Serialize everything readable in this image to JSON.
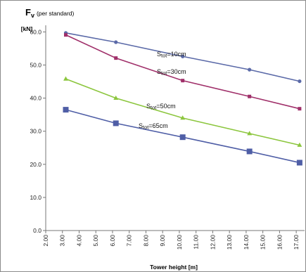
{
  "chart_data": {
    "type": "line",
    "title": "",
    "ylabel_main": "F",
    "ylabel_sub": "v",
    "ylabel_note": "(per standard)",
    "y_unit": "[kN]",
    "xlabel": "Tower height [m]",
    "xlim": [
      2,
      17.5
    ],
    "ylim": [
      0,
      62
    ],
    "x_ticks": [
      "2.00",
      "3.00",
      "4.00",
      "5.00",
      "6.00",
      "7.00",
      "8.00",
      "9.00",
      "10.00",
      "11.00",
      "12.00",
      "13.00",
      "14.00",
      "15.00",
      "16.00",
      "17.00"
    ],
    "y_ticks": [
      "0.0",
      "10.0",
      "20.0",
      "30.0",
      "40.0",
      "50.0",
      "60.0"
    ],
    "grid": false,
    "legend": "inline labels",
    "series": [
      {
        "name": "Stot=10cm",
        "name_main": "S",
        "name_sub": "tot",
        "name_rest": "=10cm",
        "color": "#5b6aa8",
        "marker": "circle",
        "x": [
          3.2,
          6.2,
          10.2,
          14.2,
          17.2
        ],
        "values": [
          59.7,
          56.9,
          52.6,
          48.6,
          45.1
        ]
      },
      {
        "name": "Stot=30cm",
        "name_main": "S",
        "name_sub": "tot",
        "name_rest": "=30cm",
        "color": "#a0306a",
        "marker": "square-small",
        "x": [
          3.2,
          6.2,
          10.2,
          14.2,
          17.2
        ],
        "values": [
          59.1,
          52.1,
          45.3,
          40.5,
          36.8
        ]
      },
      {
        "name": "Stot=50cm",
        "name_main": "S",
        "name_sub": "tot",
        "name_rest": "=50cm",
        "color": "#8cc63e",
        "marker": "triangle",
        "x": [
          3.2,
          6.2,
          10.2,
          14.2,
          17.2
        ],
        "values": [
          45.8,
          40.0,
          34.0,
          29.3,
          25.8
        ]
      },
      {
        "name": "Stot=65cm",
        "name_main": "S",
        "name_sub": "tot",
        "name_rest": "=65cm",
        "color": "#4f5ea6",
        "marker": "square",
        "x": [
          3.2,
          6.2,
          10.2,
          14.2,
          17.2
        ],
        "values": [
          36.5,
          32.4,
          28.2,
          23.9,
          20.5
        ]
      }
    ]
  }
}
